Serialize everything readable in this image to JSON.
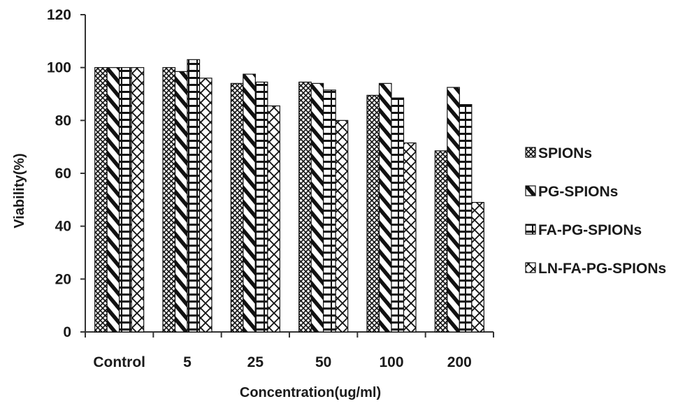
{
  "chart_data": {
    "type": "bar",
    "xlabel": "Concentration(ug/ml)",
    "ylabel": "Viability(%)",
    "categories": [
      "Control",
      "5",
      "25",
      "50",
      "100",
      "200"
    ],
    "ylim": [
      0,
      120
    ],
    "yticks": [
      0,
      20,
      40,
      60,
      80,
      100,
      120
    ],
    "grid": false,
    "legend_position": "right",
    "series": [
      {
        "name": "SPIONs",
        "pattern": "crosshatch",
        "values": [
          100,
          100,
          94,
          94.5,
          89.5,
          68.5
        ]
      },
      {
        "name": "PG-SPIONs",
        "pattern": "diagonal-stripes",
        "values": [
          100,
          98.5,
          97.5,
          94,
          94,
          92.5
        ]
      },
      {
        "name": "FA-PG-SPIONs",
        "pattern": "brick",
        "values": [
          100,
          103,
          94.5,
          91.5,
          88.5,
          86
        ]
      },
      {
        "name": "LN-FA-PG-SPIONs",
        "pattern": "diamond",
        "values": [
          100,
          96,
          85.5,
          80,
          71.5,
          49
        ]
      }
    ]
  }
}
